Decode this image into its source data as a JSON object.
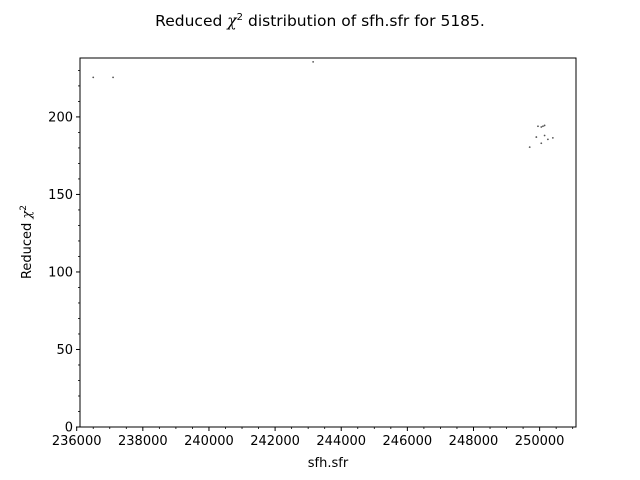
{
  "chart_data": {
    "type": "scatter",
    "title_prefix": "Reduced ",
    "title_symbol": "χ",
    "title_exponent": "2",
    "title_suffix": " distribution of sfh.sfr for 5185.",
    "xlabel": "sfh.sfr",
    "ylabel_prefix": "Reduced ",
    "ylabel_symbol": "χ",
    "ylabel_exponent": "2",
    "xlim": [
      236100,
      251100
    ],
    "ylim": [
      0,
      238
    ],
    "xticks": [
      236000,
      238000,
      240000,
      242000,
      244000,
      246000,
      248000,
      250000
    ],
    "xtick_labels": [
      "236000",
      "238000",
      "240000",
      "242000",
      "244000",
      "246000",
      "248000",
      "250000"
    ],
    "yticks": [
      0,
      50,
      100,
      150,
      200
    ],
    "ytick_labels": [
      "0",
      "50",
      "100",
      "150",
      "200"
    ],
    "grid": false,
    "marker_color": "#555555",
    "points": [
      {
        "x": 236500,
        "y": 225.5
      },
      {
        "x": 237100,
        "y": 225.5
      },
      {
        "x": 243150,
        "y": 235.5
      },
      {
        "x": 249700,
        "y": 180.5
      },
      {
        "x": 249900,
        "y": 187.0
      },
      {
        "x": 249950,
        "y": 194.0
      },
      {
        "x": 250050,
        "y": 193.5
      },
      {
        "x": 250100,
        "y": 194.0
      },
      {
        "x": 250150,
        "y": 194.5
      },
      {
        "x": 250050,
        "y": 183.0
      },
      {
        "x": 250150,
        "y": 188.0
      },
      {
        "x": 250250,
        "y": 185.5
      },
      {
        "x": 250400,
        "y": 186.5
      }
    ]
  }
}
